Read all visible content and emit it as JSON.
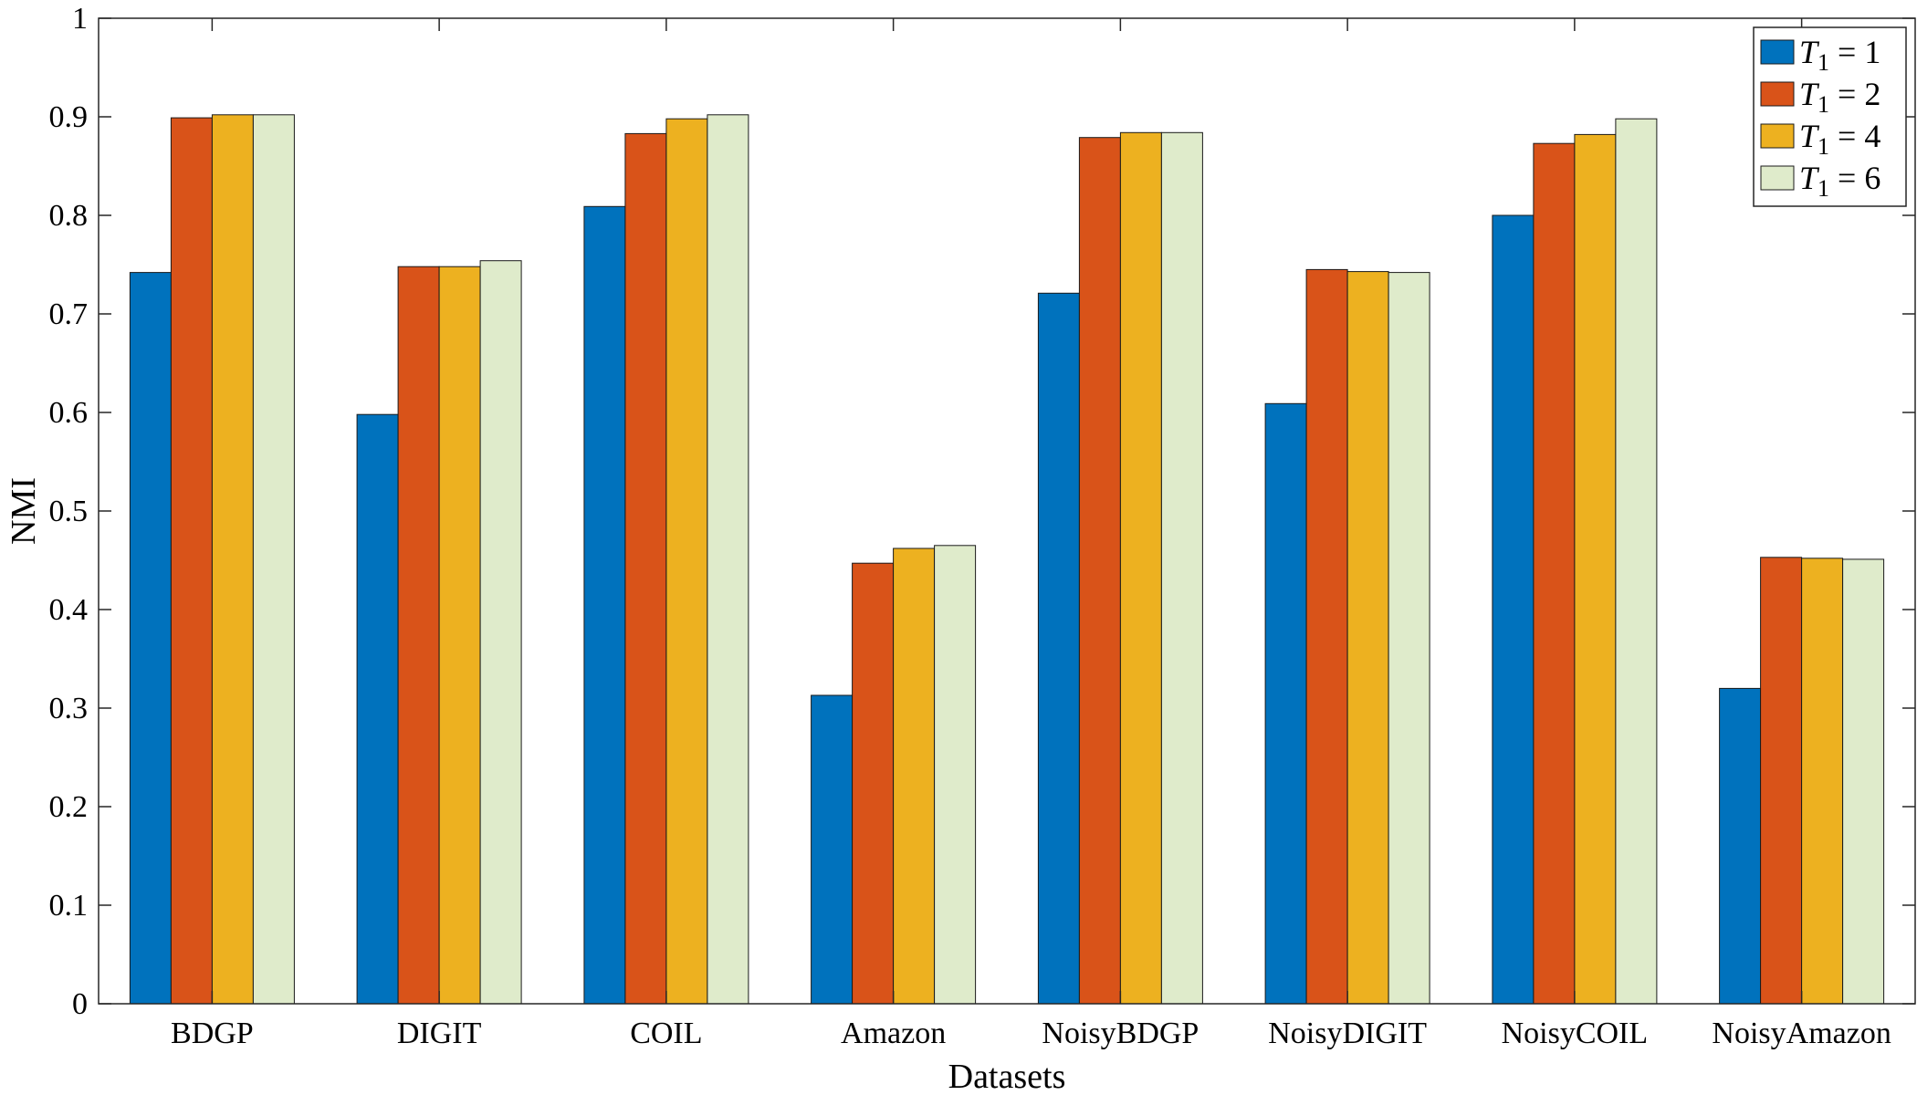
{
  "chart_data": {
    "type": "bar",
    "title": "",
    "xlabel": "Datasets",
    "ylabel": "NMI",
    "ylim": [
      0,
      1
    ],
    "yticks": [
      "0",
      "0.1",
      "0.2",
      "0.3",
      "0.4",
      "0.5",
      "0.6",
      "0.7",
      "0.8",
      "0.9",
      "1"
    ],
    "grid": false,
    "legend_position": "top-right",
    "categories": [
      "BDGP",
      "DIGIT",
      "COIL",
      "Amazon",
      "NoisyBDGP",
      "NoisyDIGIT",
      "NoisyCOIL",
      "NoisyAmazon"
    ],
    "series": [
      {
        "name": "T1 = 1",
        "symbol": "T",
        "subscript": "1",
        "relation": "= 1",
        "color": "#0072BD",
        "values": [
          0.742,
          0.598,
          0.809,
          0.313,
          0.721,
          0.609,
          0.8,
          0.32
        ]
      },
      {
        "name": "T1 = 2",
        "symbol": "T",
        "subscript": "1",
        "relation": "= 2",
        "color": "#D95319",
        "values": [
          0.899,
          0.748,
          0.883,
          0.447,
          0.879,
          0.745,
          0.873,
          0.453
        ]
      },
      {
        "name": "T1 = 4",
        "symbol": "T",
        "subscript": "1",
        "relation": "= 4",
        "color": "#EDB120",
        "values": [
          0.902,
          0.748,
          0.898,
          0.462,
          0.884,
          0.743,
          0.882,
          0.452
        ]
      },
      {
        "name": "T1 = 6",
        "symbol": "T",
        "subscript": "1",
        "relation": "= 6",
        "color": "#DFEBCB",
        "values": [
          0.902,
          0.754,
          0.902,
          0.465,
          0.884,
          0.742,
          0.898,
          0.451
        ]
      }
    ]
  }
}
